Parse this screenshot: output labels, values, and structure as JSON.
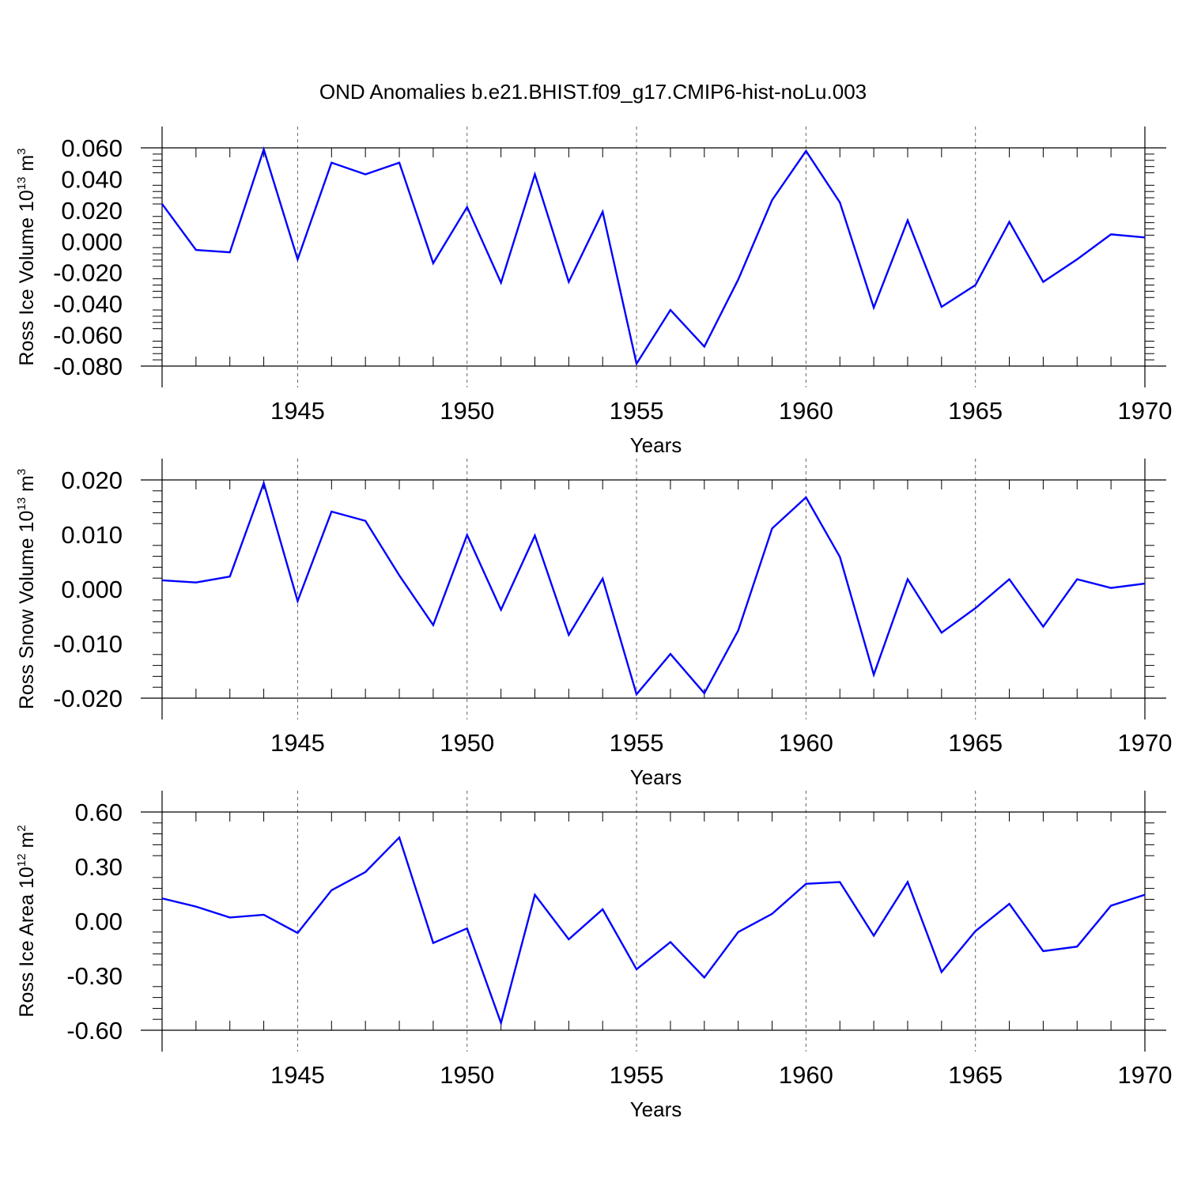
{
  "title": "OND Anomalies b.e21.BHIST.f09_g17.CMIP6-hist-noLu.003",
  "colors": {
    "line": "#0000ff",
    "axis": "#000000",
    "grid": "#666666"
  },
  "chart_data": [
    {
      "type": "line",
      "ylabel": {
        "main": "Ross Ice Volume 10",
        "exp": "13",
        "unit": " m",
        "unit_exp": "3"
      },
      "xlabel": "Years",
      "xlim": [
        1941,
        1970
      ],
      "ylim": [
        -0.08,
        0.06
      ],
      "yticks": [
        0.06,
        0.04,
        0.02,
        0.0,
        -0.02,
        -0.04,
        -0.06,
        -0.08
      ],
      "ytick_labels": [
        "0.060",
        "0.040",
        "0.020",
        "0.000",
        "-0.020",
        "-0.040",
        "-0.060",
        "-0.080"
      ],
      "xticks": [
        1945,
        1950,
        1955,
        1960,
        1965,
        1970
      ],
      "xtick_labels": [
        "1945",
        "1950",
        "1955",
        "1960",
        "1965",
        "1970"
      ],
      "grid": "vertical dashed at major ticks",
      "x": [
        1941,
        1942,
        1943,
        1944,
        1945,
        1946,
        1947,
        1948,
        1949,
        1950,
        1951,
        1952,
        1953,
        1954,
        1955,
        1956,
        1957,
        1958,
        1959,
        1960,
        1961,
        1962,
        1963,
        1964,
        1965,
        1966,
        1967,
        1968,
        1969,
        1970
      ],
      "series": [
        {
          "values": [
            0.024,
            -0.0055,
            -0.007,
            0.059,
            -0.0115,
            0.0505,
            0.043,
            0.0505,
            -0.014,
            0.022,
            -0.0265,
            0.043,
            -0.026,
            0.019,
            -0.0785,
            -0.044,
            -0.0675,
            -0.0245,
            0.0265,
            0.058,
            0.025,
            -0.0425,
            0.0135,
            -0.042,
            -0.028,
            0.0125,
            -0.026,
            -0.0115,
            0.0045,
            0.0025
          ]
        }
      ]
    },
    {
      "type": "line",
      "ylabel": {
        "main": "Ross Snow Volume 10",
        "exp": "13",
        "unit": " m",
        "unit_exp": "3"
      },
      "xlabel": "Years",
      "xlim": [
        1941,
        1970
      ],
      "ylim": [
        -0.02,
        0.02
      ],
      "yticks": [
        0.02,
        0.01,
        0.0,
        -0.01,
        -0.02
      ],
      "ytick_labels": [
        "0.020",
        "0.010",
        "0.000",
        "-0.010",
        "-0.020"
      ],
      "xticks": [
        1945,
        1950,
        1955,
        1960,
        1965,
        1970
      ],
      "xtick_labels": [
        "1945",
        "1950",
        "1955",
        "1960",
        "1965",
        "1970"
      ],
      "grid": "vertical dashed at major ticks",
      "x": [
        1941,
        1942,
        1943,
        1944,
        1945,
        1946,
        1947,
        1948,
        1949,
        1950,
        1951,
        1952,
        1953,
        1954,
        1955,
        1956,
        1957,
        1958,
        1959,
        1960,
        1961,
        1962,
        1963,
        1964,
        1965,
        1966,
        1967,
        1968,
        1969,
        1970
      ],
      "series": [
        {
          "values": [
            0.0016,
            0.0012,
            0.0023,
            0.0194,
            -0.0022,
            0.0142,
            0.0125,
            0.0025,
            -0.0066,
            0.0099,
            -0.0038,
            0.0098,
            -0.0084,
            0.0019,
            -0.0193,
            -0.0119,
            -0.0191,
            -0.0076,
            0.0111,
            0.0168,
            0.0059,
            -0.0157,
            0.0018,
            -0.008,
            -0.0035,
            0.0018,
            -0.0069,
            0.0018,
            0.0002,
            0.001
          ]
        }
      ]
    },
    {
      "type": "line",
      "ylabel": {
        "main": "Ross Ice Area 10",
        "exp": "12",
        "unit": " m",
        "unit_exp": "2"
      },
      "xlabel": "Years",
      "xlim": [
        1941,
        1970
      ],
      "ylim": [
        -0.6,
        0.6
      ],
      "yticks": [
        0.6,
        0.3,
        0.0,
        -0.3,
        -0.6
      ],
      "ytick_labels": [
        "0.60",
        "0.30",
        "0.00",
        "-0.30",
        "-0.60"
      ],
      "xticks": [
        1945,
        1950,
        1955,
        1960,
        1965,
        1970
      ],
      "xtick_labels": [
        "1945",
        "1950",
        "1955",
        "1960",
        "1965",
        "1970"
      ],
      "grid": "vertical dashed at major ticks",
      "x": [
        1941,
        1942,
        1943,
        1944,
        1945,
        1946,
        1947,
        1948,
        1949,
        1950,
        1951,
        1952,
        1953,
        1954,
        1955,
        1956,
        1957,
        1958,
        1959,
        1960,
        1961,
        1962,
        1963,
        1964,
        1965,
        1966,
        1967,
        1968,
        1969,
        1970
      ],
      "series": [
        {
          "values": [
            0.125,
            0.08,
            0.02,
            0.035,
            -0.065,
            0.17,
            0.27,
            0.46,
            -0.12,
            -0.04,
            -0.56,
            0.145,
            -0.1,
            0.065,
            -0.265,
            -0.115,
            -0.31,
            -0.06,
            0.04,
            0.205,
            0.215,
            -0.08,
            0.215,
            -0.28,
            -0.055,
            0.095,
            -0.165,
            -0.14,
            0.085,
            0.145
          ]
        }
      ]
    }
  ]
}
